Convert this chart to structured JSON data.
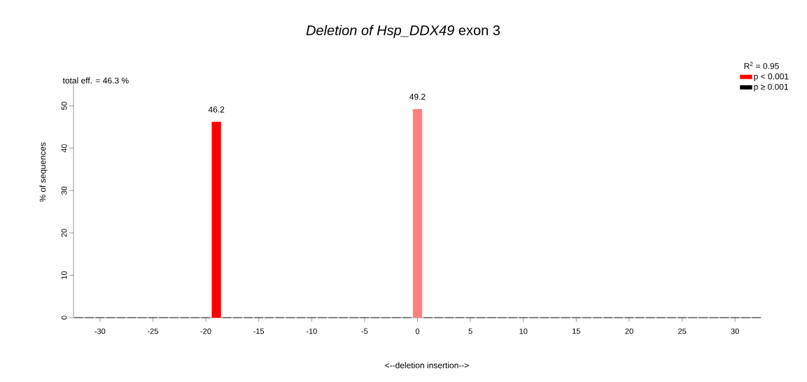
{
  "chart_data": {
    "type": "bar",
    "title": "*Deletion of Hsp_DDX49* exon 3",
    "xlabel": "<--deletion     insertion-->",
    "ylabel": "% of sequences",
    "annotations": [
      "total eff. = 46.3 %"
    ],
    "legend_title": "R$^{2}$ = 0.95",
    "legend": "top right",
    "series": [
      {
        "name": "p < 0.001",
        "color": "#ff0000",
        "colors": [
          "#ff0000",
          "#ff8080"
        ],
        "x": [
          -19,
          0
        ],
        "values": [
          46.2,
          49.2
        ],
        "value_labels": [
          "46.2",
          "49.2"
        ]
      },
      {
        "name": "p ≥ 0.001",
        "color": "#000000",
        "x": [
          -32,
          -31,
          -30,
          -29,
          -28,
          -27,
          -26,
          -25,
          -24,
          -23,
          -22,
          -21,
          -20,
          -18,
          -17,
          -16,
          -15,
          -14,
          -13,
          -12,
          -11,
          -10,
          -9,
          -8,
          -7,
          -6,
          -5,
          -4,
          -3,
          -2,
          -1,
          1,
          2,
          3,
          4,
          5,
          6,
          7,
          8,
          9,
          10,
          11,
          12,
          13,
          14,
          15,
          16,
          17,
          18,
          19,
          20,
          21,
          22,
          23,
          24,
          25,
          26,
          27,
          28,
          29,
          30,
          31,
          32
        ],
        "values": [
          0,
          0,
          0,
          0,
          0,
          0,
          0,
          0,
          0,
          0,
          0,
          0,
          0,
          0,
          0,
          0,
          0,
          0,
          0,
          0,
          0,
          0,
          0,
          0,
          0,
          0,
          0,
          0,
          0,
          0,
          0,
          0,
          0,
          0,
          0,
          0,
          0,
          0,
          0,
          0,
          0,
          0,
          0,
          0,
          0,
          0,
          0,
          0,
          0,
          0,
          0,
          0,
          0,
          0,
          0,
          0,
          0,
          0,
          0,
          0,
          0,
          0,
          0
        ]
      }
    ],
    "xlim": [
      -32.5,
      32.5
    ],
    "ylim": [
      0,
      55
    ],
    "xticks": [
      -30,
      -25,
      -20,
      -15,
      -10,
      -5,
      0,
      5,
      10,
      15,
      20,
      25,
      30
    ],
    "yticks": [
      0,
      10,
      20,
      30,
      40,
      50
    ]
  }
}
